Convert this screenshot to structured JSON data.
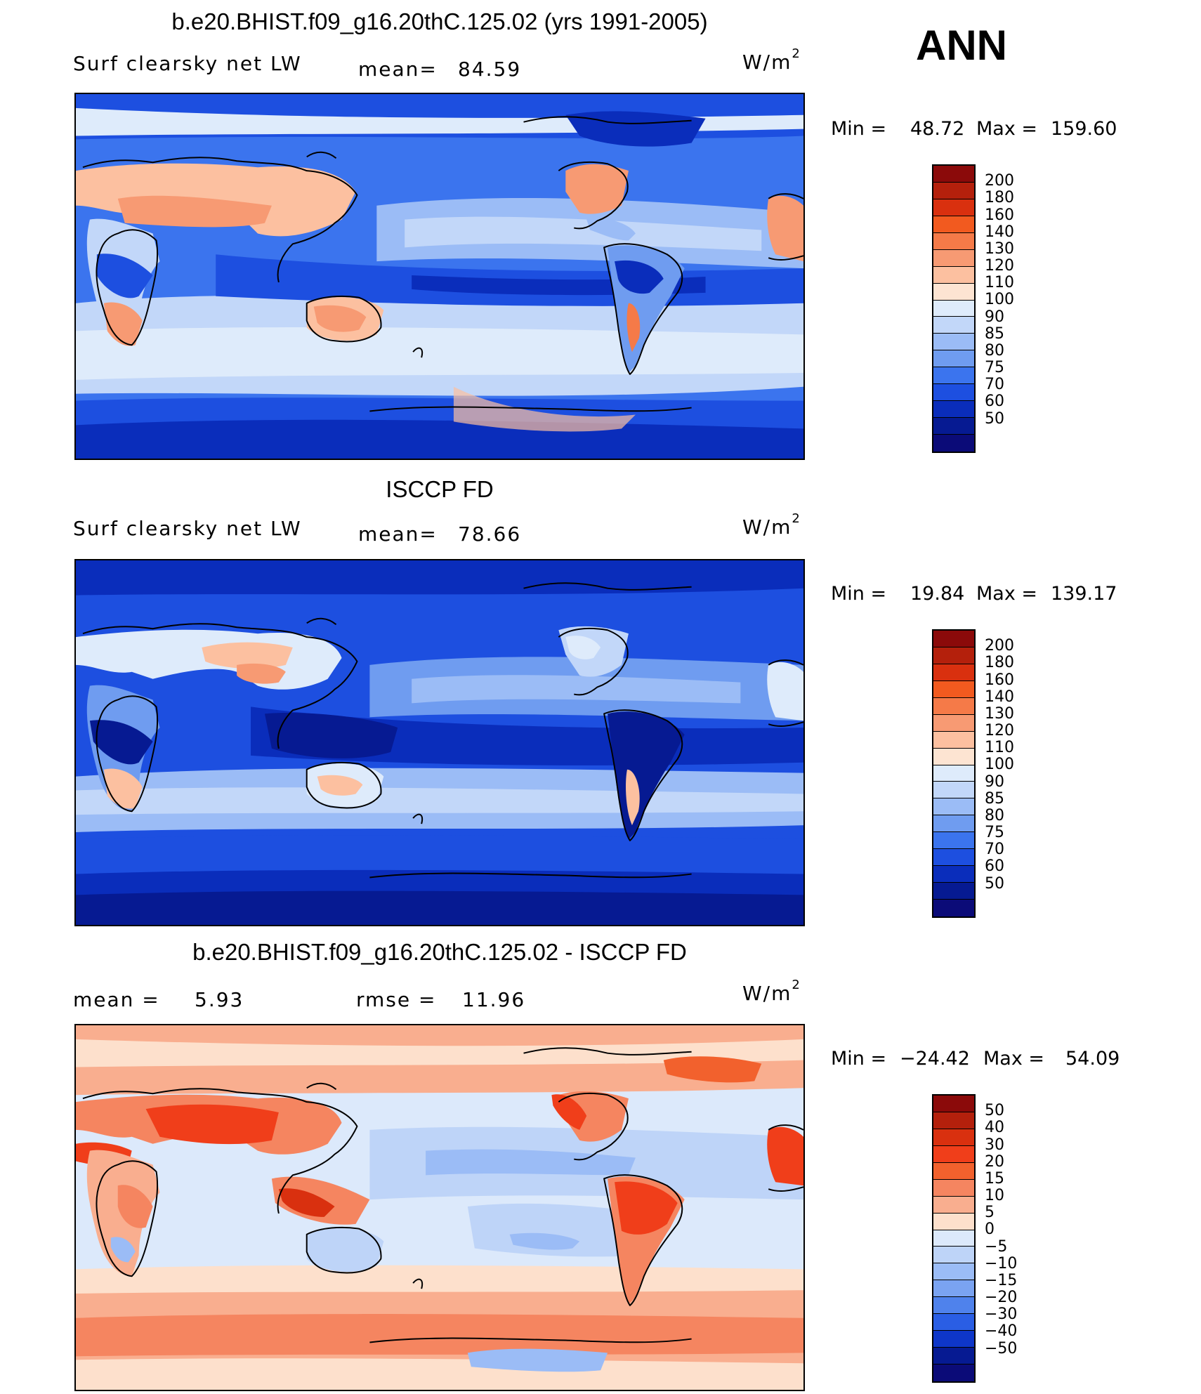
{
  "season": "ANN",
  "panels": [
    {
      "title": "b.e20.BHIST.f09_g16.20thC.125.02 (yrs 1991-2005)",
      "variable": "Surf clearsky net LW",
      "left_label_2": "",
      "stat1_label": "mean=",
      "stat1_value": "84.59",
      "stat2_label": "",
      "stat2_value": "",
      "units_base": "W/m",
      "units_exp": "2",
      "min_label": "Min =",
      "min_value": "48.72",
      "max_label": "Max =",
      "max_value": "159.60",
      "scale": "abs",
      "levels": [
        "200",
        "180",
        "160",
        "140",
        "130",
        "120",
        "110",
        "100",
        "90",
        "85",
        "80",
        "75",
        "70",
        "60",
        "50"
      ]
    },
    {
      "title": "ISCCP FD",
      "variable": "Surf clearsky net LW",
      "left_label_2": "",
      "stat1_label": "mean=",
      "stat1_value": "78.66",
      "stat2_label": "",
      "stat2_value": "",
      "units_base": "W/m",
      "units_exp": "2",
      "min_label": "Min =",
      "min_value": "19.84",
      "max_label": "Max =",
      "max_value": "139.17",
      "scale": "abs",
      "levels": [
        "200",
        "180",
        "160",
        "140",
        "130",
        "120",
        "110",
        "100",
        "90",
        "85",
        "80",
        "75",
        "70",
        "60",
        "50"
      ]
    },
    {
      "title": "b.e20.BHIST.f09_g16.20thC.125.02 - ISCCP FD",
      "variable": "",
      "left_label_2": "",
      "stat1_label": "mean =",
      "stat1_value": "5.93",
      "stat2_label": "rmse =",
      "stat2_value": "11.96",
      "units_base": "W/m",
      "units_exp": "2",
      "min_label": "Min =",
      "min_value": "−24.42",
      "max_label": "Max =",
      "max_value": "54.09",
      "scale": "diff",
      "levels": [
        "50",
        "40",
        "30",
        "20",
        "15",
        "10",
        "5",
        "0",
        "−5",
        "−10",
        "−15",
        "−20",
        "−30",
        "−40",
        "−50"
      ]
    }
  ],
  "colors": {
    "abs_scale": [
      "#8b0a0a",
      "#b4200c",
      "#d9300f",
      "#f25a1f",
      "#f57a48",
      "#f79a73",
      "#fcc0a0",
      "#fde4d2",
      "#deebfb",
      "#c2d7f9",
      "#9bbcf6",
      "#6f9cf0",
      "#3b74ee",
      "#1d4fe0",
      "#0a2dbb",
      "#061a92",
      "#0b0b78"
    ],
    "diff_scale": [
      "#8b0a0a",
      "#b4200c",
      "#d9300f",
      "#f03e1a",
      "#f2612d",
      "#f58560",
      "#f9ae8f",
      "#fde0cc",
      "#dce9fb",
      "#bed4f8",
      "#9bbcf6",
      "#7aa3f1",
      "#4f82ec",
      "#2a5ee4",
      "#0e36c9",
      "#061a92",
      "#0b0b78"
    ]
  }
}
